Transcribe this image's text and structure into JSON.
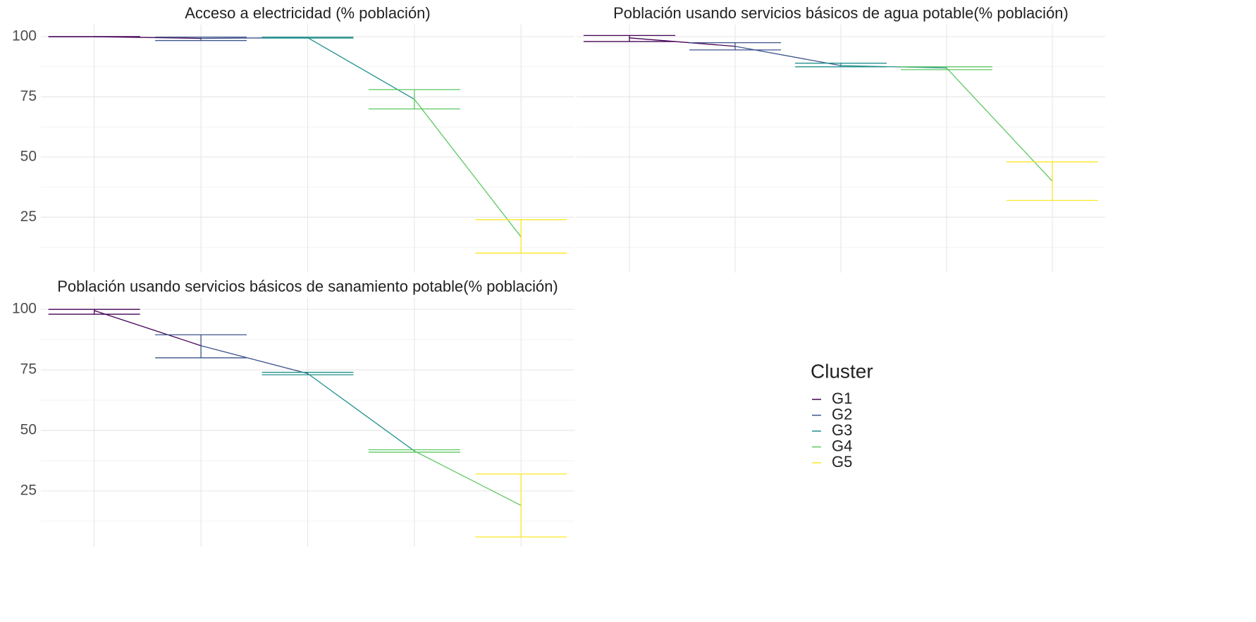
{
  "chart_data": [
    {
      "type": "errorbar",
      "title": "Acceso a electricidad (% población)",
      "categories": [
        null,
        null,
        null,
        null,
        null
      ],
      "values": [
        100,
        99.3,
        99.6,
        74,
        16.8
      ],
      "low": [
        100,
        98.4,
        99.4,
        70,
        10.1
      ],
      "high": [
        100,
        99.8,
        99.8,
        78,
        24
      ],
      "ylim": [
        2,
        105
      ],
      "yticks": [
        25,
        50,
        75,
        100
      ],
      "minor_yticks": [
        12.5,
        37.5,
        62.5,
        87.5
      ],
      "ytick_labels": true,
      "grid": true
    },
    {
      "type": "errorbar",
      "title": "Población usando servicios básicos de agua potable(% población)",
      "categories": [
        null,
        null,
        null,
        null,
        null
      ],
      "values": [
        99.5,
        96,
        88,
        87,
        40
      ],
      "low": [
        98,
        94.5,
        87.5,
        86.3,
        32
      ],
      "high": [
        100.5,
        97.5,
        89,
        87.5,
        48
      ],
      "ylim": [
        2,
        105
      ],
      "yticks": [
        25,
        50,
        75,
        100
      ],
      "minor_yticks": [
        12.5,
        37.5,
        62.5,
        87.5
      ],
      "ytick_labels": false,
      "grid": true
    },
    {
      "type": "errorbar",
      "title": "Población usando servicios básicos de sanamiento potable(% población)",
      "categories": [
        null,
        null,
        null,
        null,
        null
      ],
      "values": [
        99.5,
        85,
        73.5,
        41.5,
        19
      ],
      "low": [
        98,
        80,
        73,
        41,
        6
      ],
      "high": [
        100,
        89.5,
        74,
        42,
        32
      ],
      "ylim": [
        2,
        105
      ],
      "yticks": [
        25,
        50,
        75,
        100
      ],
      "minor_yticks": [
        12.5,
        37.5,
        62.5,
        87.5
      ],
      "ytick_labels": true,
      "grid": true
    }
  ],
  "legend": {
    "title": "Cluster",
    "names": [
      "G1",
      "G2",
      "G3",
      "G4",
      "G5"
    ],
    "colors": [
      "#440154",
      "#3b528b",
      "#21908c",
      "#5dc863",
      "#fde725"
    ]
  }
}
